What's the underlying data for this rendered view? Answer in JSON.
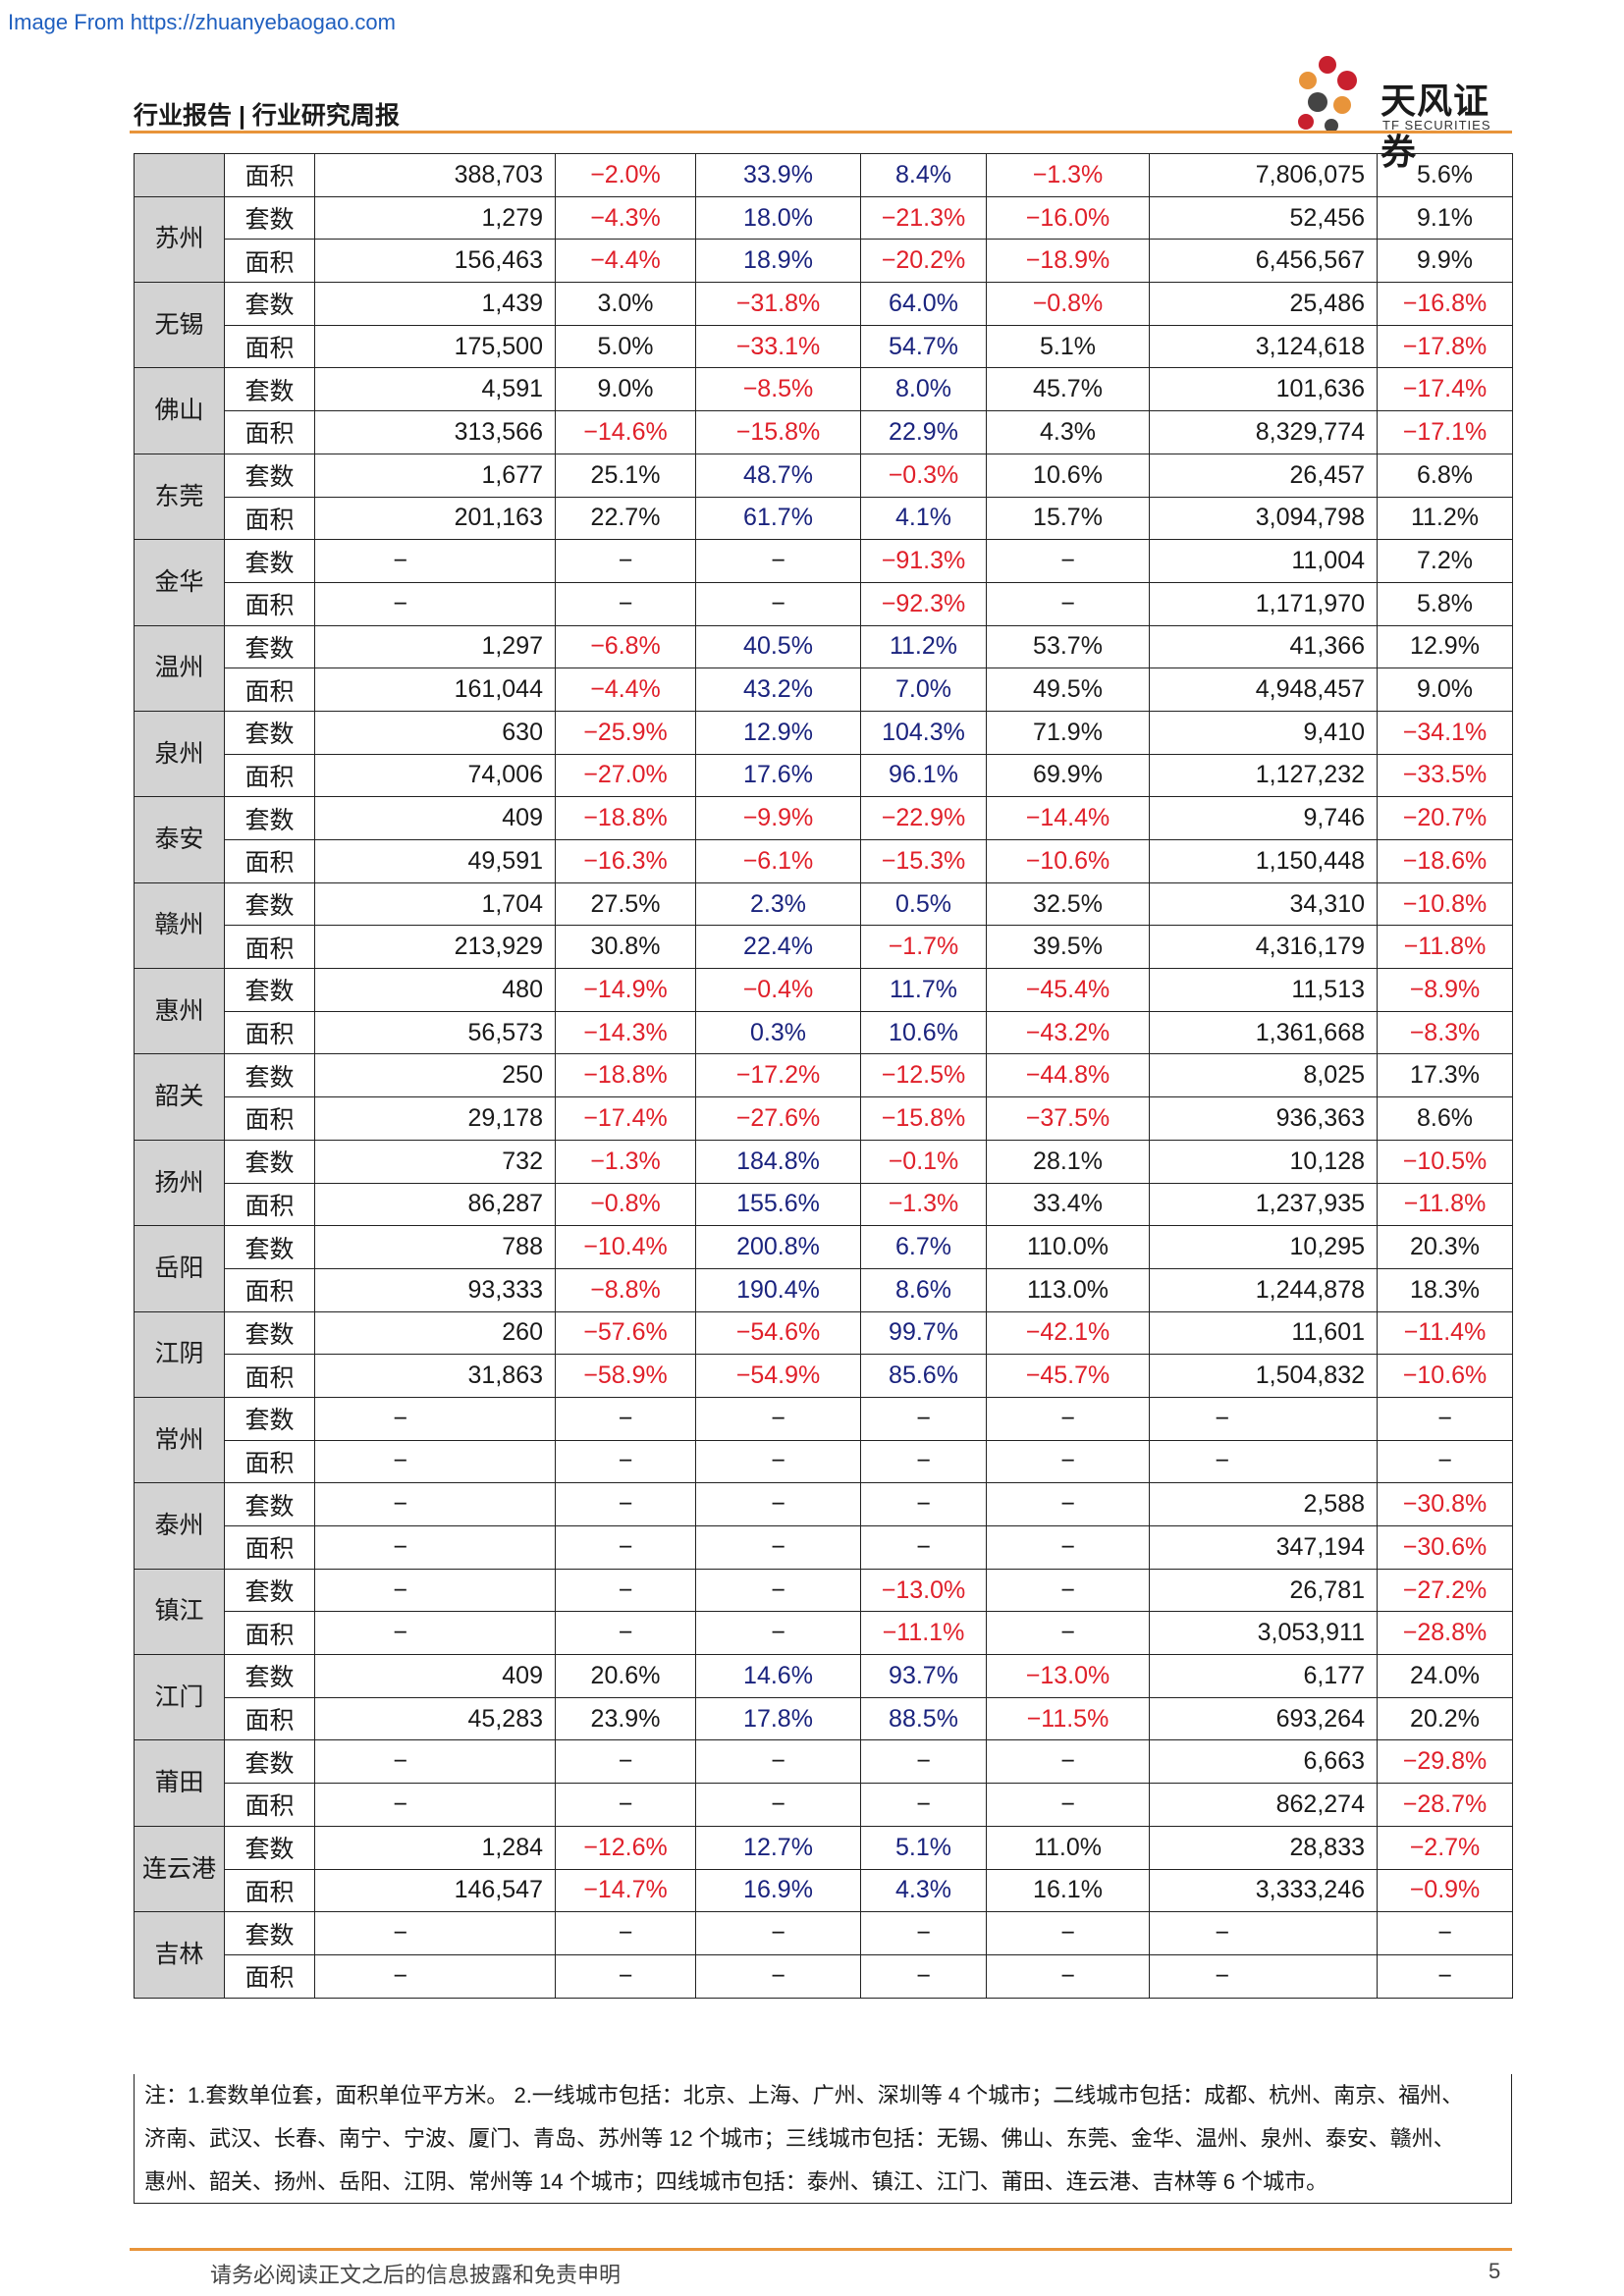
{
  "source": "Image From https://zhuanyebaogao.com",
  "header": {
    "title": "行业报告 | 行业研究周报",
    "logo_cn": "天风证券",
    "logo_en": "TF SECURITIES"
  },
  "rows": [
    {
      "city": "",
      "metric": "面积",
      "v": [
        "388,703",
        "−2.0%",
        "33.9%",
        "8.4%",
        "−1.3%",
        "7,806,075",
        "5.6%"
      ]
    },
    {
      "city": "苏州",
      "metric": "套数",
      "v": [
        "1,279",
        "−4.3%",
        "18.0%",
        "−21.3%",
        "−16.0%",
        "52,456",
        "9.1%"
      ]
    },
    {
      "city": "",
      "metric": "面积",
      "v": [
        "156,463",
        "−4.4%",
        "18.9%",
        "−20.2%",
        "−18.9%",
        "6,456,567",
        "9.9%"
      ]
    },
    {
      "city": "无锡",
      "metric": "套数",
      "v": [
        "1,439",
        "3.0%",
        "−31.8%",
        "64.0%",
        "−0.8%",
        "25,486",
        "−16.8%"
      ]
    },
    {
      "city": "",
      "metric": "面积",
      "v": [
        "175,500",
        "5.0%",
        "−33.1%",
        "54.7%",
        "5.1%",
        "3,124,618",
        "−17.8%"
      ]
    },
    {
      "city": "佛山",
      "metric": "套数",
      "v": [
        "4,591",
        "9.0%",
        "−8.5%",
        "8.0%",
        "45.7%",
        "101,636",
        "−17.4%"
      ]
    },
    {
      "city": "",
      "metric": "面积",
      "v": [
        "313,566",
        "−14.6%",
        "−15.8%",
        "22.9%",
        "4.3%",
        "8,329,774",
        "−17.1%"
      ]
    },
    {
      "city": "东莞",
      "metric": "套数",
      "v": [
        "1,677",
        "25.1%",
        "48.7%",
        "−0.3%",
        "10.6%",
        "26,457",
        "6.8%"
      ]
    },
    {
      "city": "",
      "metric": "面积",
      "v": [
        "201,163",
        "22.7%",
        "61.7%",
        "4.1%",
        "15.7%",
        "3,094,798",
        "11.2%"
      ]
    },
    {
      "city": "金华",
      "metric": "套数",
      "v": [
        "−",
        "−",
        "−",
        "−91.3%",
        "−",
        "11,004",
        "7.2%"
      ]
    },
    {
      "city": "",
      "metric": "面积",
      "v": [
        "−",
        "−",
        "−",
        "−92.3%",
        "−",
        "1,171,970",
        "5.8%"
      ]
    },
    {
      "city": "温州",
      "metric": "套数",
      "v": [
        "1,297",
        "−6.8%",
        "40.5%",
        "11.2%",
        "53.7%",
        "41,366",
        "12.9%"
      ]
    },
    {
      "city": "",
      "metric": "面积",
      "v": [
        "161,044",
        "−4.4%",
        "43.2%",
        "7.0%",
        "49.5%",
        "4,948,457",
        "9.0%"
      ]
    },
    {
      "city": "泉州",
      "metric": "套数",
      "v": [
        "630",
        "−25.9%",
        "12.9%",
        "104.3%",
        "71.9%",
        "9,410",
        "−34.1%"
      ]
    },
    {
      "city": "",
      "metric": "面积",
      "v": [
        "74,006",
        "−27.0%",
        "17.6%",
        "96.1%",
        "69.9%",
        "1,127,232",
        "−33.5%"
      ]
    },
    {
      "city": "泰安",
      "metric": "套数",
      "v": [
        "409",
        "−18.8%",
        "−9.9%",
        "−22.9%",
        "−14.4%",
        "9,746",
        "−20.7%"
      ]
    },
    {
      "city": "",
      "metric": "面积",
      "v": [
        "49,591",
        "−16.3%",
        "−6.1%",
        "−15.3%",
        "−10.6%",
        "1,150,448",
        "−18.6%"
      ]
    },
    {
      "city": "赣州",
      "metric": "套数",
      "v": [
        "1,704",
        "27.5%",
        "2.3%",
        "0.5%",
        "32.5%",
        "34,310",
        "−10.8%"
      ]
    },
    {
      "city": "",
      "metric": "面积",
      "v": [
        "213,929",
        "30.8%",
        "22.4%",
        "−1.7%",
        "39.5%",
        "4,316,179",
        "−11.8%"
      ]
    },
    {
      "city": "惠州",
      "metric": "套数",
      "v": [
        "480",
        "−14.9%",
        "−0.4%",
        "11.7%",
        "−45.4%",
        "11,513",
        "−8.9%"
      ]
    },
    {
      "city": "",
      "metric": "面积",
      "v": [
        "56,573",
        "−14.3%",
        "0.3%",
        "10.6%",
        "−43.2%",
        "1,361,668",
        "−8.3%"
      ]
    },
    {
      "city": "韶关",
      "metric": "套数",
      "v": [
        "250",
        "−18.8%",
        "−17.2%",
        "−12.5%",
        "−44.8%",
        "8,025",
        "17.3%"
      ]
    },
    {
      "city": "",
      "metric": "面积",
      "v": [
        "29,178",
        "−17.4%",
        "−27.6%",
        "−15.8%",
        "−37.5%",
        "936,363",
        "8.6%"
      ]
    },
    {
      "city": "扬州",
      "metric": "套数",
      "v": [
        "732",
        "−1.3%",
        "184.8%",
        "−0.1%",
        "28.1%",
        "10,128",
        "−10.5%"
      ]
    },
    {
      "city": "",
      "metric": "面积",
      "v": [
        "86,287",
        "−0.8%",
        "155.6%",
        "−1.3%",
        "33.4%",
        "1,237,935",
        "−11.8%"
      ]
    },
    {
      "city": "岳阳",
      "metric": "套数",
      "v": [
        "788",
        "−10.4%",
        "200.8%",
        "6.7%",
        "110.0%",
        "10,295",
        "20.3%"
      ]
    },
    {
      "city": "",
      "metric": "面积",
      "v": [
        "93,333",
        "−8.8%",
        "190.4%",
        "8.6%",
        "113.0%",
        "1,244,878",
        "18.3%"
      ]
    },
    {
      "city": "江阴",
      "metric": "套数",
      "v": [
        "260",
        "−57.6%",
        "−54.6%",
        "99.7%",
        "−42.1%",
        "11,601",
        "−11.4%"
      ]
    },
    {
      "city": "",
      "metric": "面积",
      "v": [
        "31,863",
        "−58.9%",
        "−54.9%",
        "85.6%",
        "−45.7%",
        "1,504,832",
        "−10.6%"
      ]
    },
    {
      "city": "常州",
      "metric": "套数",
      "v": [
        "−",
        "−",
        "−",
        "−",
        "−",
        "−",
        "−"
      ]
    },
    {
      "city": "",
      "metric": "面积",
      "v": [
        "−",
        "−",
        "−",
        "−",
        "−",
        "−",
        "−"
      ]
    },
    {
      "city": "泰州",
      "metric": "套数",
      "v": [
        "−",
        "−",
        "−",
        "−",
        "−",
        "2,588",
        "−30.8%"
      ]
    },
    {
      "city": "",
      "metric": "面积",
      "v": [
        "−",
        "−",
        "−",
        "−",
        "−",
        "347,194",
        "−30.6%"
      ]
    },
    {
      "city": "镇江",
      "metric": "套数",
      "v": [
        "−",
        "−",
        "−",
        "−13.0%",
        "−",
        "26,781",
        "−27.2%"
      ]
    },
    {
      "city": "",
      "metric": "面积",
      "v": [
        "−",
        "−",
        "−",
        "−11.1%",
        "−",
        "3,053,911",
        "−28.8%"
      ]
    },
    {
      "city": "江门",
      "metric": "套数",
      "v": [
        "409",
        "20.6%",
        "14.6%",
        "93.7%",
        "−13.0%",
        "6,177",
        "24.0%"
      ]
    },
    {
      "city": "",
      "metric": "面积",
      "v": [
        "45,283",
        "23.9%",
        "17.8%",
        "88.5%",
        "−11.5%",
        "693,264",
        "20.2%"
      ]
    },
    {
      "city": "莆田",
      "metric": "套数",
      "v": [
        "−",
        "−",
        "−",
        "−",
        "−",
        "6,663",
        "−29.8%"
      ]
    },
    {
      "city": "",
      "metric": "面积",
      "v": [
        "−",
        "−",
        "−",
        "−",
        "−",
        "862,274",
        "−28.7%"
      ]
    },
    {
      "city": "连云港",
      "metric": "套数",
      "v": [
        "1,284",
        "−12.6%",
        "12.7%",
        "5.1%",
        "11.0%",
        "28,833",
        "−2.7%"
      ]
    },
    {
      "city": "",
      "metric": "面积",
      "v": [
        "146,547",
        "−14.7%",
        "16.9%",
        "4.3%",
        "16.1%",
        "3,333,246",
        "−0.9%"
      ]
    },
    {
      "city": "吉林",
      "metric": "套数",
      "v": [
        "−",
        "−",
        "−",
        "−",
        "−",
        "−",
        "−"
      ]
    },
    {
      "city": "",
      "metric": "面积",
      "v": [
        "−",
        "−",
        "−",
        "−",
        "−",
        "−",
        "−"
      ]
    }
  ],
  "note": {
    "line1": "注：1.套数单位套，面积单位平方米。   2.一线城市包括：北京、上海、广州、深圳等 4 个城市；二线城市包括：成都、杭州、南京、福州、",
    "line2": "济南、武汉、长春、南宁、宁波、厦门、青岛、苏州等 12 个城市；三线城市包括：无锡、佛山、东莞、金华、温州、泉州、泰安、赣州、",
    "line3": "惠州、韶关、扬州、岳阳、江阴、常州等 14 个城市；四线城市包括：泰州、镇江、江门、莆田、连云港、吉林等 6 个城市。"
  },
  "footer": {
    "disclaimer": "请务必阅读正文之后的信息披露和免责申明",
    "page": "5"
  },
  "colors": {
    "accent": "#e8943a",
    "negative": "#e0202a",
    "positive_wow": "#1a237e",
    "city_cell": "#d3d3d3"
  }
}
